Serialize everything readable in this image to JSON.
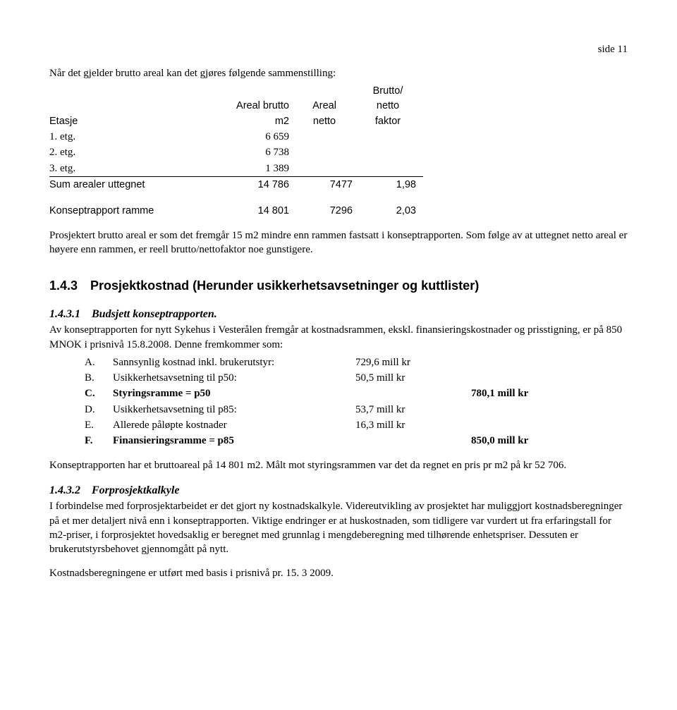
{
  "page_label": "side 11",
  "intro": "Når det gjelder brutto areal kan det gjøres følgende sammenstilling:",
  "areal_table": {
    "headers": {
      "c0": "Etasje",
      "c1_line1": "Areal brutto",
      "c1_line2": "m2",
      "c2_line1": "Areal",
      "c2_line2": "netto",
      "c3_line1": "Brutto/",
      "c3_line2": "netto",
      "c3_line3": "faktor"
    },
    "rows": [
      {
        "label": "1. etg.",
        "v1": "6 659",
        "v2": "",
        "v3": ""
      },
      {
        "label": "2. etg.",
        "v1": "6 738",
        "v2": "",
        "v3": ""
      },
      {
        "label": "3. etg.",
        "v1": "1 389",
        "v2": "",
        "v3": ""
      }
    ],
    "sum": {
      "label": "Sum arealer uttegnet",
      "v1": "14 786",
      "v2": "7477",
      "v3": "1,98"
    },
    "konsept": {
      "label": "Konseptrapport ramme",
      "v1": "14 801",
      "v2": "7296",
      "v3": "2,03"
    }
  },
  "para_after_table": "Prosjektert brutto areal er som det fremgår 15 m2 mindre enn rammen fastsatt i konseptrapporten. Som følge av at uttegnet netto areal er høyere enn rammen, er reell brutto/nettofaktor noe gunstigere.",
  "section_heading": "1.4.3 Prosjektkostnad (Herunder usikkerhetsavsetninger og kuttlister)",
  "sub1_heading": "1.4.3.1 Budsjett konseptrapporten.",
  "sub1_para": "Av konseptrapporten for nytt Sykehus i Vesterålen fremgår at kostnadsrammen, ekskl. finansieringskostnader og prisstigning, er på 850 MNOK i prisnivå 15.8.2008. Denne fremkommer som:",
  "cost_rows": [
    {
      "letter": "A.",
      "desc": "Sannsynlig kostnad inkl. brukerutstyr:",
      "val": "729,6 mill kr",
      "bold": false
    },
    {
      "letter": "B.",
      "desc": "Usikkerhetsavsetning til p50:",
      "val": "50,5 mill kr",
      "bold": false
    },
    {
      "letter": "C.",
      "desc": "Styringsramme = p50",
      "val": "780,1 mill kr",
      "bold": true
    },
    {
      "letter": "D.",
      "desc": "Usikkerhetsavsetning til p85:",
      "val": "53,7 mill kr",
      "bold": false
    },
    {
      "letter": "E.",
      "desc": "Allerede påløpte kostnader",
      "val": "16,3 mill kr",
      "bold": false
    },
    {
      "letter": "F.",
      "desc": "Finansieringsramme = p85",
      "val": "850,0 mill kr",
      "bold": true
    }
  ],
  "para_after_cost": "Konseptrapporten har et bruttoareal på 14 801 m2. Målt mot styringsrammen var det da regnet en pris pr m2 på kr 52 706.",
  "sub2_heading": "1.4.3.2 Forprosjektkalkyle",
  "sub2_para": "I forbindelse med forprosjektarbeidet er det gjort ny kostnadskalkyle. Videreutvikling av prosjektet har muliggjort kostnadsberegninger på et mer detaljert nivå enn i konseptrapporten. Viktige endringer er at huskostnaden, som tidligere var vurdert ut fra erfaringstall for m2-priser, i forprosjektet hovedsaklig er beregnet med grunnlag i mengdeberegning med tilhørende enhetspriser. Dessuten er brukerutstyrsbehovet gjennomgått på nytt.",
  "final_para": "Kostnadsberegningene er utført med basis i prisnivå pr. 15. 3 2009."
}
